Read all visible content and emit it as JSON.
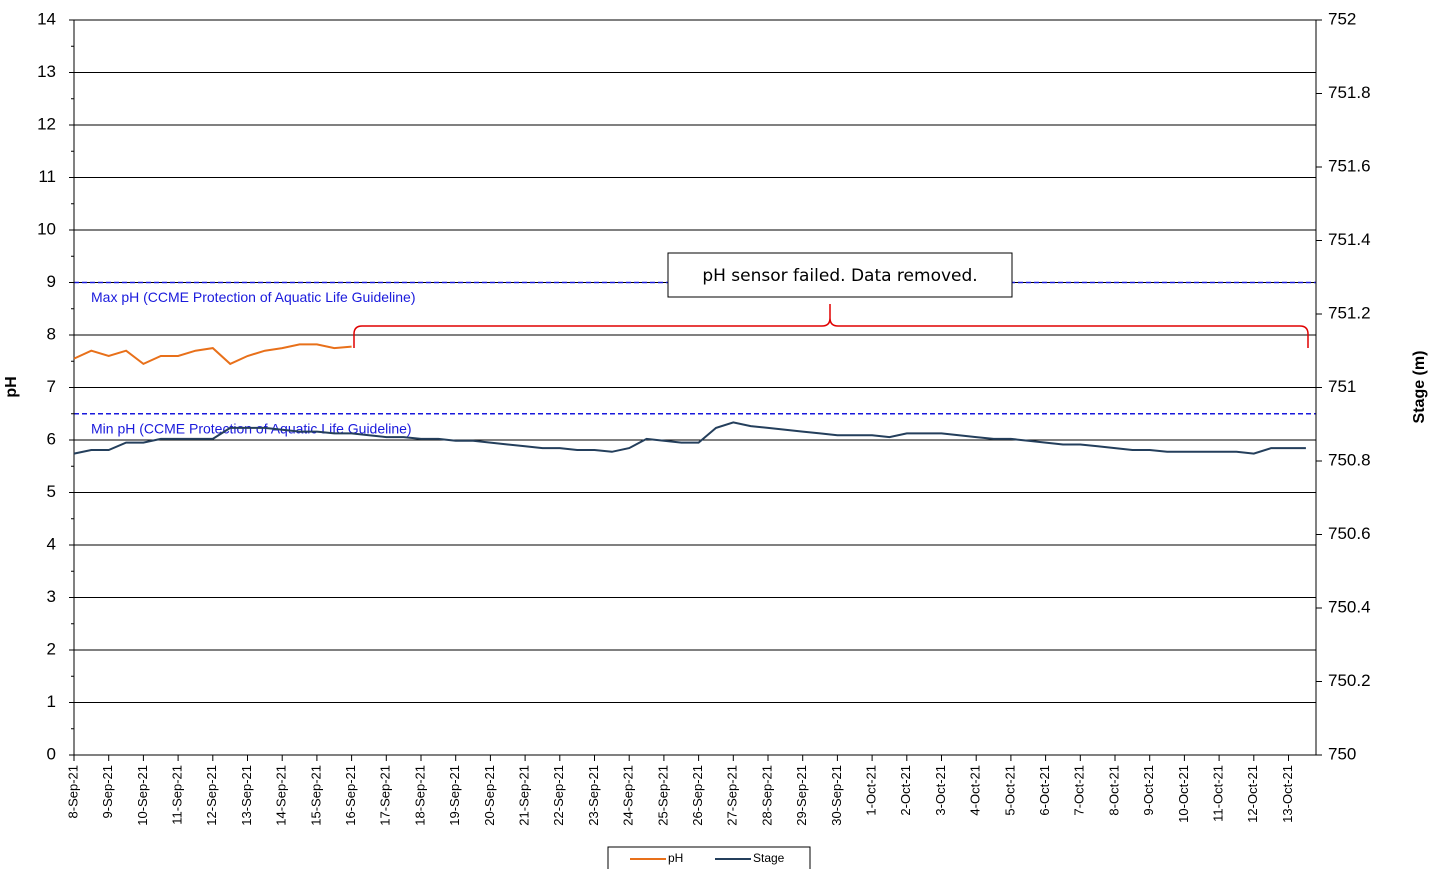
{
  "chart_data": {
    "type": "line",
    "categories": [
      "8-Sep-21",
      null,
      "9-Sep-21",
      null,
      "10-Sep-21",
      null,
      "11-Sep-21",
      null,
      "12-Sep-21",
      null,
      "13-Sep-21",
      null,
      "14-Sep-21",
      null,
      "15-Sep-21",
      null,
      "16-Sep-21",
      null,
      "17-Sep-21",
      null,
      "18-Sep-21",
      null,
      "19-Sep-21",
      null,
      "20-Sep-21",
      null,
      "21-Sep-21",
      null,
      "22-Sep-21",
      null,
      "23-Sep-21",
      null,
      "24-Sep-21",
      null,
      "25-Sep-21",
      null,
      "26-Sep-21",
      null,
      "27-Sep-21",
      null,
      "28-Sep-21",
      null,
      "29-Sep-21",
      null,
      "30-Sep-21",
      null,
      "1-Oct-21",
      null,
      "2-Oct-21",
      null,
      "3-Oct-21",
      null,
      "4-Oct-21",
      null,
      "5-Oct-21",
      null,
      "6-Oct-21",
      null,
      "7-Oct-21",
      null,
      "8-Oct-21",
      null,
      "9-Oct-21",
      null,
      "10-Oct-21",
      null,
      "11-Oct-21",
      null,
      "12-Oct-21",
      null,
      "13-Oct-21",
      null
    ],
    "series": [
      {
        "name": "pH",
        "color": "#e8701a",
        "values": [
          7.55,
          7.7,
          7.6,
          7.7,
          7.45,
          7.6,
          7.6,
          7.7,
          7.75,
          7.45,
          7.6,
          7.7,
          7.75,
          7.82,
          7.82,
          7.75,
          7.78,
          null,
          null,
          null,
          null,
          null,
          null,
          null,
          null,
          null,
          null,
          null,
          null,
          null,
          null,
          null,
          null,
          null,
          null,
          null,
          null,
          null,
          null,
          null,
          null,
          null,
          null,
          null,
          null,
          null,
          null,
          null,
          null,
          null,
          null,
          null,
          null,
          null,
          null,
          null,
          null,
          null,
          null,
          null,
          null,
          null,
          null,
          null,
          null,
          null,
          null,
          null,
          null,
          null,
          null,
          null
        ]
      },
      {
        "name": "Stage",
        "color": "#243f5c",
        "axis": "y2",
        "values": [
          750.82,
          750.83,
          750.83,
          750.85,
          750.85,
          750.86,
          750.86,
          750.86,
          750.86,
          750.89,
          750.89,
          750.89,
          750.885,
          750.88,
          750.88,
          750.875,
          750.875,
          750.87,
          750.865,
          750.865,
          750.86,
          750.86,
          750.855,
          750.855,
          750.85,
          750.845,
          750.84,
          750.835,
          750.835,
          750.83,
          750.83,
          750.825,
          750.835,
          750.86,
          750.855,
          750.85,
          750.85,
          750.89,
          750.905,
          750.895,
          750.89,
          750.885,
          750.88,
          750.875,
          750.87,
          750.87,
          750.87,
          750.865,
          750.875,
          750.875,
          750.875,
          750.87,
          750.865,
          750.86,
          750.86,
          750.855,
          750.85,
          750.845,
          750.845,
          750.84,
          750.835,
          750.83,
          750.83,
          750.825,
          750.825,
          750.825,
          750.825,
          750.825,
          750.82,
          750.835,
          750.835,
          750.835
        ]
      }
    ],
    "ylabel": "pH",
    "y2label": "Stage (m)",
    "ylim": [
      0,
      14
    ],
    "yticks": [
      0,
      1,
      2,
      3,
      4,
      5,
      6,
      7,
      8,
      9,
      10,
      11,
      12,
      13,
      14
    ],
    "y2lim": [
      750,
      752
    ],
    "y2ticks": [
      750,
      750.2,
      750.4,
      750.6,
      750.8,
      751,
      751.2,
      751.4,
      751.6,
      751.8,
      752
    ],
    "grid": true,
    "reference_lines": [
      {
        "value": 9,
        "label": "Max pH (CCME Protection of Aquatic Life Guideline)",
        "color": "#1a1adc"
      },
      {
        "value": 6.5,
        "label": "Min pH (CCME Protection of Aquatic Life Guideline)",
        "color": "#1a1adc"
      }
    ],
    "annotation": "pH sensor failed. Data removed.",
    "legend": "bottom"
  }
}
